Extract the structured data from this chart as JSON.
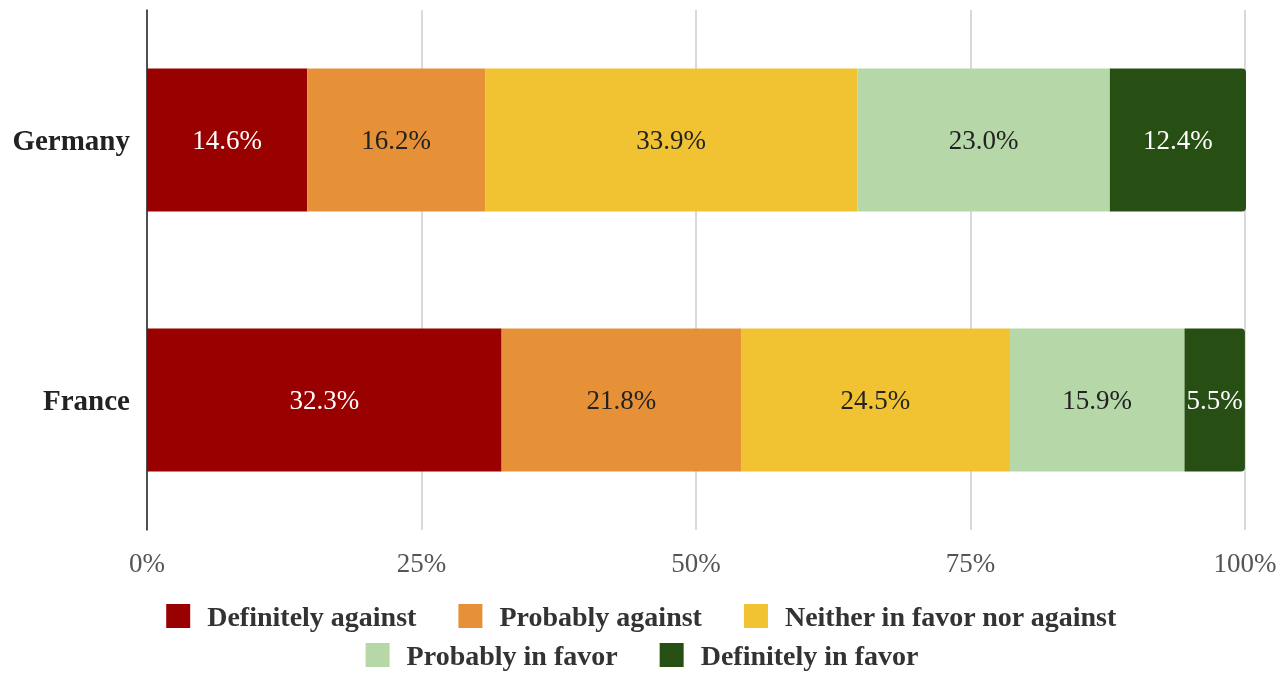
{
  "chart_data": {
    "type": "bar",
    "orientation": "horizontal",
    "stacked": true,
    "categories": [
      "Germany",
      "France"
    ],
    "series": [
      {
        "name": "Definitely against",
        "color": "#990000",
        "values": [
          14.6,
          32.3
        ],
        "value_labels": [
          "14.6%",
          "32.3%"
        ]
      },
      {
        "name": "Probably against",
        "color": "#e69138",
        "values": [
          16.2,
          21.8
        ],
        "value_labels": [
          "16.2%",
          "21.8%"
        ]
      },
      {
        "name": "Neither in favor nor against",
        "color": "#f1c232",
        "values": [
          33.9,
          24.5
        ],
        "value_labels": [
          "33.9%",
          "24.5%"
        ]
      },
      {
        "name": "Probably in favor",
        "color": "#b6d7a8",
        "values": [
          23.0,
          15.9
        ],
        "value_labels": [
          "23.0%",
          "15.9%"
        ]
      },
      {
        "name": "Definitely in favor",
        "color": "#274e13",
        "values": [
          12.4,
          5.5
        ],
        "value_labels": [
          "12.4%",
          "5.5%"
        ]
      }
    ],
    "xlim": [
      0,
      100.1
    ],
    "xticks": [
      {
        "value": 0,
        "label": "0%"
      },
      {
        "value": 25,
        "label": "25%"
      },
      {
        "value": 50,
        "label": "50%"
      },
      {
        "value": 75,
        "label": "75%"
      },
      {
        "value": 100,
        "label": "100%"
      }
    ],
    "grid": "x",
    "legend": "bottom"
  }
}
